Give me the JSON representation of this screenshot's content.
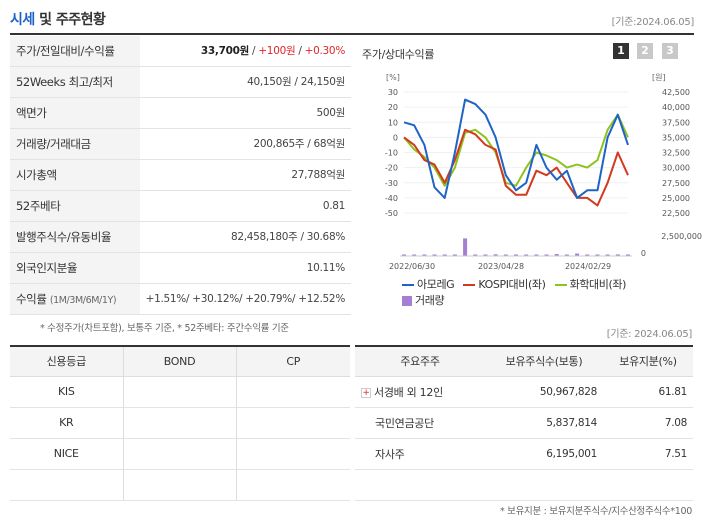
{
  "header": {
    "title_accent": "시세",
    "title_rest": " 및 주주현황",
    "date": "[기준:2024.06.05]"
  },
  "stats": [
    {
      "label": "주가/전일대비/수익률",
      "price": "33,700원",
      "sep1": " / ",
      "change": "+100원",
      "sep2": " / ",
      "rate": "+0.30%"
    },
    {
      "label": "52Weeks 최고/최저",
      "value": "40,150원 / 24,150원"
    },
    {
      "label": "액면가",
      "value": "500원"
    },
    {
      "label": "거래량/거래대금",
      "value": "200,865주 / 68억원"
    },
    {
      "label": "시가총액",
      "value": "27,788억원"
    },
    {
      "label": "52주베타",
      "value": "0.81"
    },
    {
      "label": "발행주식수/유동비율",
      "value": "82,458,180주 / 30.68%"
    },
    {
      "label": "외국인지분율",
      "value": "10.11%"
    },
    {
      "label": "수익률",
      "label_small": "(1M/3M/6M/1Y)",
      "value": "+1.51%/ +30.12%/ +20.79%/ +12.52%"
    }
  ],
  "note1": "* 수정주가(차트포함), 보통주 기준, * 52주베타: 주간수익률 기준",
  "chart": {
    "title": "주가/상대수익률",
    "pages": [
      "1",
      "2",
      "3"
    ],
    "left_unit": "[%]",
    "right_unit": "[원]",
    "legend": {
      "s1": "아모레G",
      "s2": "KOSPI대비(좌)",
      "s3": "화학대비(좌)",
      "s4": "거래량"
    },
    "colors": {
      "s1": "#1f63c6",
      "s2": "#d13a1e",
      "s3": "#8dc21f",
      "vol": "#a57fd4"
    }
  },
  "chart_data": {
    "type": "line",
    "x_ticks": [
      "2022/06/30",
      "2023/04/28",
      "2024/02/29"
    ],
    "y_left_ticks": [
      "30",
      "20",
      "10",
      "0",
      "-10",
      "-20",
      "-30",
      "-40",
      "-50"
    ],
    "y_right_ticks": [
      "42,500",
      "40,000",
      "37,500",
      "35,000",
      "32,500",
      "30,000",
      "27,500",
      "25,000",
      "22,500"
    ],
    "y2_right_ticks": [
      "2,500,000",
      "0"
    ],
    "ylim_left": [
      -50,
      30
    ],
    "series": [
      {
        "name": "아모레G",
        "values": [
          10,
          8,
          -5,
          -33,
          -40,
          -10,
          25,
          22,
          15,
          0,
          -25,
          -35,
          -30,
          -5,
          -20,
          -28,
          -22,
          -40,
          -35,
          -35,
          0,
          15,
          -5
        ]
      },
      {
        "name": "KOSPI대비(좌)",
        "values": [
          0,
          -5,
          -15,
          -18,
          -30,
          -15,
          5,
          2,
          -5,
          -8,
          -32,
          -38,
          -38,
          -22,
          -25,
          -20,
          -30,
          -40,
          -40,
          -45,
          -30,
          -10,
          -25
        ]
      },
      {
        "name": "화학대비(좌)",
        "values": [
          0,
          -8,
          -13,
          -20,
          -32,
          -20,
          3,
          5,
          0,
          -10,
          -30,
          -32,
          -20,
          -10,
          -12,
          -15,
          -20,
          -18,
          -20,
          -15,
          5,
          15,
          0
        ]
      }
    ],
    "volume": [
      80,
      90,
      120,
      100,
      110,
      150,
      2200,
      180,
      130,
      210,
      150,
      90,
      160,
      140,
      100,
      240,
      120,
      300,
      90,
      180,
      140,
      200,
      110
    ]
  },
  "right_date": "[기준: 2024.06.05]",
  "credit": {
    "headers": [
      "신용등급",
      "BOND",
      "CP"
    ],
    "rows": [
      [
        "KIS",
        "",
        ""
      ],
      [
        "KR",
        "",
        ""
      ],
      [
        "NICE",
        "",
        ""
      ],
      [
        "",
        "",
        ""
      ]
    ]
  },
  "holders": {
    "headers": [
      "주요주주",
      "보유주식수(보통)",
      "보유지분(%)"
    ],
    "rows": [
      {
        "name": "서경배 외 12인",
        "shares": "50,967,828",
        "pct": "61.81",
        "expand": "+"
      },
      {
        "name": "국민연금공단",
        "shares": "5,837,814",
        "pct": "7.08"
      },
      {
        "name": "자사주",
        "shares": "6,195,001",
        "pct": "7.51"
      },
      {
        "name": "",
        "shares": "",
        "pct": ""
      }
    ]
  },
  "note2": "* 보유지분 : 보유지분주식수/지수산정주식수*100"
}
